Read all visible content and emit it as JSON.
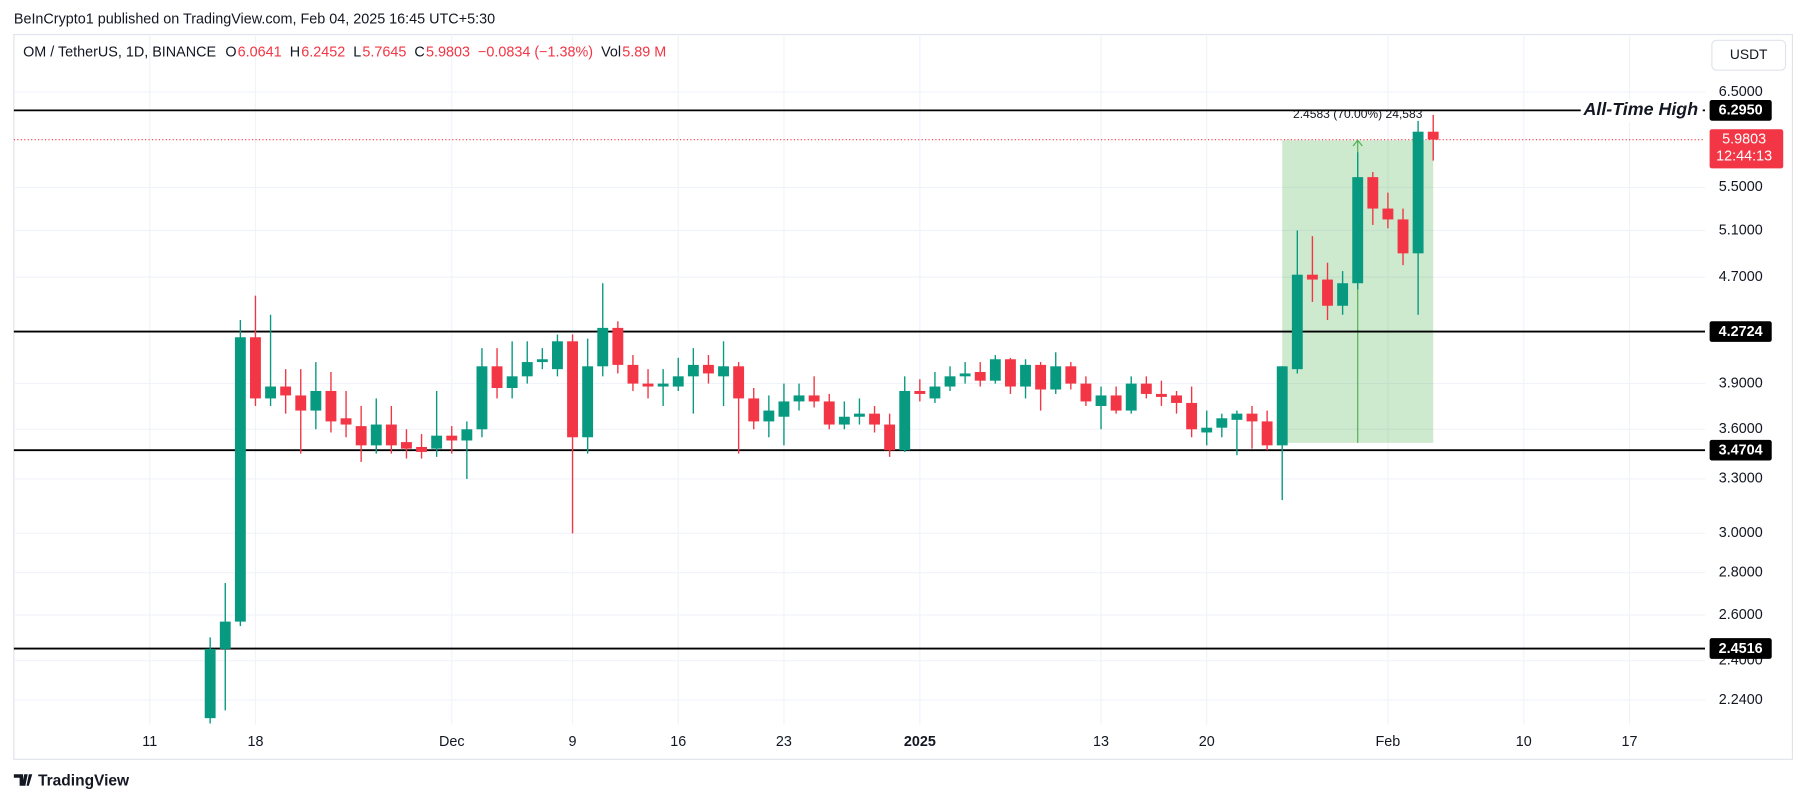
{
  "header": {
    "publisher": "BeInCrypto1 published on TradingView.com, Feb 04, 2025 16:45 UTC+5:30"
  },
  "footer": {
    "logo": "TradingView"
  },
  "chart_data": {
    "type": "candlestick",
    "symbol": "OM / TetherUS, 1D, BINANCE",
    "ohlc_legend": [
      {
        "label": "O",
        "value": "6.0641"
      },
      {
        "label": "H",
        "value": "6.2452"
      },
      {
        "label": "L",
        "value": "5.7645"
      },
      {
        "label": "C",
        "value": "5.9803"
      },
      {
        "label": "",
        "value": "−0.0834 (−1.38%)"
      },
      {
        "label": "Vol",
        "value": "5.89 M"
      }
    ],
    "currency": "USDT",
    "up_color": "#089981",
    "down_color": "#f23645",
    "x": [
      "2024-11-15",
      "2024-11-16",
      "2024-11-17",
      "2024-11-18",
      "2024-11-19",
      "2024-11-20",
      "2024-11-21",
      "2024-11-22",
      "2024-11-23",
      "2024-11-24",
      "2024-11-25",
      "2024-11-26",
      "2024-11-27",
      "2024-11-28",
      "2024-11-29",
      "2024-11-30",
      "2024-12-01",
      "2024-12-02",
      "2024-12-03",
      "2024-12-04",
      "2024-12-05",
      "2024-12-06",
      "2024-12-07",
      "2024-12-08",
      "2024-12-09",
      "2024-12-10",
      "2024-12-11",
      "2024-12-12",
      "2024-12-13",
      "2024-12-14",
      "2024-12-15",
      "2024-12-16",
      "2024-12-17",
      "2024-12-18",
      "2024-12-19",
      "2024-12-20",
      "2024-12-21",
      "2024-12-22",
      "2024-12-23",
      "2024-12-24",
      "2024-12-25",
      "2024-12-26",
      "2024-12-27",
      "2024-12-28",
      "2024-12-29",
      "2024-12-30",
      "2024-12-31",
      "2025-01-01",
      "2025-01-02",
      "2025-01-03",
      "2025-01-04",
      "2025-01-05",
      "2025-01-06",
      "2025-01-07",
      "2025-01-08",
      "2025-01-09",
      "2025-01-10",
      "2025-01-11",
      "2025-01-12",
      "2025-01-13",
      "2025-01-14",
      "2025-01-15",
      "2025-01-16",
      "2025-01-17",
      "2025-01-18",
      "2025-01-19",
      "2025-01-20",
      "2025-01-21",
      "2025-01-22",
      "2025-01-23",
      "2025-01-24",
      "2025-01-25",
      "2025-01-26",
      "2025-01-27",
      "2025-01-28",
      "2025-01-29",
      "2025-01-30",
      "2025-01-31",
      "2025-02-01",
      "2025-02-02",
      "2025-02-03",
      "2025-02-04"
    ],
    "open": [
      2.17,
      2.45,
      2.57,
      4.23,
      3.8,
      3.88,
      3.82,
      3.72,
      3.85,
      3.67,
      3.62,
      3.5,
      3.63,
      3.52,
      3.49,
      3.48,
      3.56,
      3.53,
      3.6,
      4.02,
      3.87,
      3.95,
      4.05,
      4.0,
      4.2,
      3.55,
      4.02,
      4.3,
      4.03,
      3.9,
      3.88,
      3.88,
      3.95,
      4.03,
      3.95,
      4.02,
      3.8,
      3.65,
      3.68,
      3.78,
      3.82,
      3.78,
      3.63,
      3.68,
      3.7,
      3.63,
      3.47,
      3.85,
      3.8,
      3.88,
      3.95,
      3.98,
      3.92,
      4.07,
      3.88,
      4.03,
      3.86,
      4.02,
      3.9,
      3.75,
      3.82,
      3.72,
      3.9,
      3.83,
      3.82,
      3.77,
      3.58,
      3.61,
      3.66,
      3.7,
      3.65,
      3.5,
      4.0,
      4.72,
      4.68,
      4.47,
      4.65,
      5.6,
      5.3,
      5.2,
      4.9,
      6.0641
    ],
    "high": [
      2.5,
      2.75,
      4.36,
      4.55,
      4.4,
      4.0,
      4.0,
      4.05,
      3.98,
      3.85,
      3.75,
      3.8,
      3.75,
      3.6,
      3.57,
      3.85,
      3.62,
      3.65,
      4.15,
      4.15,
      4.2,
      4.2,
      4.15,
      4.25,
      4.25,
      4.22,
      4.65,
      4.35,
      4.1,
      4.0,
      4.0,
      4.08,
      4.15,
      4.1,
      4.2,
      4.05,
      3.87,
      3.82,
      3.9,
      3.9,
      3.95,
      3.83,
      3.78,
      3.8,
      3.75,
      3.7,
      3.95,
      3.93,
      3.98,
      4.02,
      4.05,
      4.05,
      4.1,
      4.08,
      4.07,
      4.05,
      4.12,
      4.05,
      3.95,
      3.88,
      3.88,
      3.95,
      3.95,
      3.92,
      3.85,
      3.88,
      3.72,
      3.7,
      3.72,
      3.75,
      3.72,
      4.02,
      5.1,
      5.05,
      4.82,
      4.75,
      5.85,
      5.65,
      5.45,
      5.3,
      6.18,
      6.2452
    ],
    "low": [
      2.15,
      2.2,
      2.55,
      3.75,
      3.75,
      3.7,
      3.45,
      3.6,
      3.58,
      3.55,
      3.4,
      3.45,
      3.45,
      3.42,
      3.42,
      3.43,
      3.45,
      3.3,
      3.55,
      3.8,
      3.8,
      3.9,
      4.0,
      3.95,
      3.0,
      3.45,
      3.95,
      3.97,
      3.85,
      3.8,
      3.75,
      3.85,
      3.7,
      3.9,
      3.75,
      3.45,
      3.6,
      3.55,
      3.5,
      3.72,
      3.74,
      3.6,
      3.6,
      3.63,
      3.58,
      3.43,
      3.46,
      3.78,
      3.77,
      3.85,
      3.9,
      3.88,
      3.9,
      3.83,
      3.8,
      3.72,
      3.83,
      3.86,
      3.75,
      3.6,
      3.7,
      3.7,
      3.8,
      3.75,
      3.7,
      3.55,
      3.5,
      3.55,
      3.44,
      3.48,
      3.47,
      3.18,
      3.97,
      4.5,
      4.36,
      4.4,
      4.6,
      5.15,
      5.12,
      4.8,
      4.4,
      5.7645
    ],
    "close": [
      2.45,
      2.57,
      4.23,
      3.8,
      3.88,
      3.82,
      3.72,
      3.85,
      3.65,
      3.63,
      3.5,
      3.63,
      3.5,
      3.48,
      3.46,
      3.56,
      3.53,
      3.6,
      4.02,
      3.87,
      3.95,
      4.05,
      4.07,
      4.2,
      3.55,
      4.02,
      4.3,
      4.03,
      3.9,
      3.88,
      3.9,
      3.95,
      4.03,
      3.97,
      4.02,
      3.8,
      3.65,
      3.72,
      3.78,
      3.82,
      3.78,
      3.63,
      3.68,
      3.7,
      3.63,
      3.47,
      3.85,
      3.83,
      3.88,
      3.95,
      3.97,
      3.92,
      4.07,
      3.88,
      4.03,
      3.86,
      4.02,
      3.9,
      3.78,
      3.82,
      3.72,
      3.9,
      3.83,
      3.81,
      3.77,
      3.6,
      3.61,
      3.67,
      3.7,
      3.65,
      3.5,
      4.02,
      4.72,
      4.68,
      4.47,
      4.65,
      5.6,
      5.3,
      5.2,
      4.9,
      6.0642,
      5.9803
    ],
    "xlim": [
      "2024-11-02",
      "2025-02-22"
    ],
    "xticks": [
      {
        "value": "2024-11-11",
        "label": "11"
      },
      {
        "value": "2024-11-18",
        "label": "18"
      },
      {
        "value": "2024-12-01",
        "label": "Dec"
      },
      {
        "value": "2024-12-09",
        "label": "9"
      },
      {
        "value": "2024-12-16",
        "label": "16"
      },
      {
        "value": "2024-12-23",
        "label": "23"
      },
      {
        "value": "2025-01-01",
        "label": "2025"
      },
      {
        "value": "2025-01-13",
        "label": "13"
      },
      {
        "value": "2025-01-20",
        "label": "20"
      },
      {
        "value": "2025-02-01",
        "label": "Feb"
      },
      {
        "value": "2025-02-10",
        "label": "10"
      },
      {
        "value": "2025-02-17",
        "label": "17"
      }
    ],
    "ylim": [
      2.145,
      7.19
    ],
    "log_scale": true,
    "grid": true,
    "yticks": [
      {
        "value": 6.5,
        "label": "6.5000"
      },
      {
        "value": 5.5,
        "label": "5.5000"
      },
      {
        "value": 5.1,
        "label": "5.1000"
      },
      {
        "value": 4.7,
        "label": "4.7000"
      },
      {
        "value": 3.9,
        "label": "3.9000"
      },
      {
        "value": 3.6,
        "label": "3.6000"
      },
      {
        "value": 3.3,
        "label": "3.3000"
      },
      {
        "value": 3.0,
        "label": "3.0000"
      },
      {
        "value": 2.8,
        "label": "2.8000"
      },
      {
        "value": 2.6,
        "label": "2.6000"
      },
      {
        "value": 2.4,
        "label": "2.4000"
      },
      {
        "value": 2.24,
        "label": "2.2400"
      }
    ],
    "levels": [
      {
        "value": 6.295,
        "label": "6.2950"
      },
      {
        "value": 4.2724,
        "label": "4.2724"
      },
      {
        "value": 3.4704,
        "label": "3.4704"
      },
      {
        "value": 2.4516,
        "label": "2.4516"
      }
    ],
    "level_color": "#000000",
    "annotation": {
      "text": "All-Time High",
      "level": 6.295
    },
    "last_price": {
      "value": 5.9803,
      "countdown": "12:44:13"
    },
    "measure": {
      "x": [
        "2025-01-25",
        "2025-02-04"
      ],
      "from": 3.5155,
      "to": 5.9738,
      "label": "2.4583 (70.00%) 24,583",
      "color": "#4caf50"
    }
  }
}
